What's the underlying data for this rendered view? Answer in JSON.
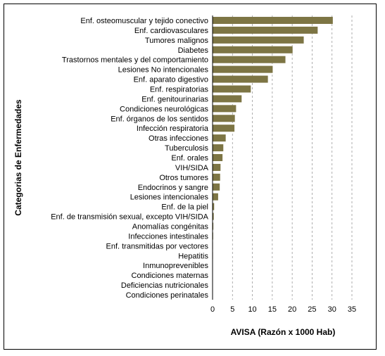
{
  "chart_data": {
    "type": "bar",
    "orientation": "horizontal",
    "xlabel": "AVISA (Razón x 1000 Hab)",
    "ylabel": "Categorias de Enfermedades",
    "xlim": [
      0,
      35
    ],
    "xticks": [
      "0",
      "5",
      "10",
      "15",
      "20",
      "25",
      "30",
      "35"
    ],
    "grid": "vertical dashed",
    "bar_color": "#7d7544",
    "categories": [
      "Enf. osteomuscular y tejido conectivo",
      "Enf. cardiovasculares",
      "Tumores malignos",
      "Diabetes",
      "Trastornos mentales y del comportamiento",
      "Lesiones No intencionales",
      "Enf. aparato digestivo",
      "Enf. respiratorias",
      "Enf. genitourinarias",
      "Condiciones neurológicas",
      "Enf. órganos de los sentidos",
      "Infección respiratoria",
      "Otras infecciones",
      "Tuberculosis",
      "Enf. orales",
      "VIH/SIDA",
      "Otros tumores",
      "Endocrinos y sangre",
      "Lesiones intencionales",
      "Enf. de la piel",
      "Enf. de transmisión sexual, excepto VIH/SIDA",
      "Anomalías congénitas",
      "Infecciones intestinales",
      "Enf. transmitidas por vectores",
      "Hepatitis",
      "Inmunoprevenibles",
      "Condiciones maternas",
      "Deficiencias nutricionales",
      "Condiciones perinatales"
    ],
    "values": [
      30.2,
      26.4,
      22.9,
      20.1,
      18.3,
      15.1,
      13.9,
      9.6,
      7.3,
      5.9,
      5.6,
      5.5,
      3.3,
      2.7,
      2.5,
      2.0,
      1.9,
      1.8,
      1.4,
      0.4,
      0.3,
      0.2,
      0.15,
      0.1,
      0.1,
      0.05,
      0.05,
      0.04,
      0.03
    ]
  }
}
